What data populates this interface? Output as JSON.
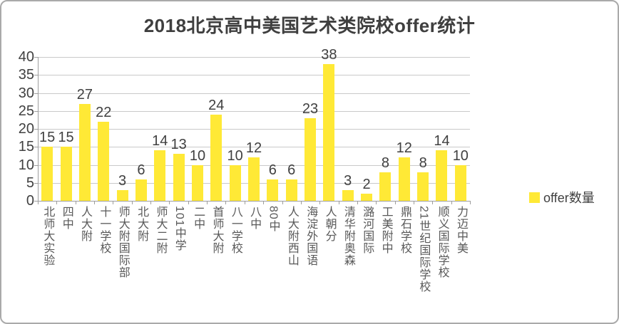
{
  "title": "2018北京高中美国艺术类院校offer统计",
  "legend": {
    "label": "offer数量",
    "swatch_color": "#FFE936"
  },
  "colors": {
    "bar": "#FFE936",
    "gridline": "#C9C9C9",
    "axis": "#9E9E9E",
    "text": "#404040",
    "category_text": "#595959"
  },
  "chart_data": {
    "type": "bar",
    "title": "2018北京高中美国艺术类院校offer统计",
    "categories": [
      "北师大实验",
      "四中",
      "人大附",
      "十一学校",
      "师大附国际部",
      "北大附",
      "师大二附",
      "101中学",
      "二中",
      "首师大附",
      "八一学校",
      "八中",
      "80中",
      "人大附西山",
      "海淀外国语",
      "人朝分",
      "清华附奥森",
      "潞河国际",
      "工美附中",
      "鼎石学校",
      "21世纪国际学校",
      "顺义国际学校",
      "力迈中美"
    ],
    "values": [
      15,
      15,
      27,
      22,
      3,
      6,
      14,
      13,
      10,
      24,
      10,
      12,
      6,
      6,
      23,
      38,
      3,
      2,
      8,
      12,
      8,
      14,
      10
    ],
    "series": [
      {
        "name": "offer数量",
        "values": [
          15,
          15,
          27,
          22,
          3,
          6,
          14,
          13,
          10,
          24,
          10,
          12,
          6,
          6,
          23,
          38,
          3,
          2,
          8,
          12,
          8,
          14,
          10
        ]
      }
    ],
    "xlabel": "",
    "ylabel": "",
    "ylim": [
      0,
      40
    ],
    "yticks": [
      0,
      5,
      10,
      15,
      20,
      25,
      30,
      35,
      40
    ],
    "grid": true,
    "data_labels": true,
    "legend_position": "right"
  }
}
